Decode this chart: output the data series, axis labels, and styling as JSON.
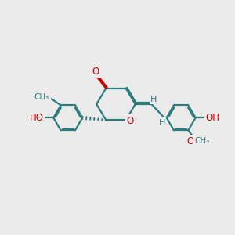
{
  "bg": "#ebebeb",
  "bc": "#2d7d7d",
  "oc": "#cc0000",
  "lw": 1.6,
  "fs": 8.5,
  "fs_small": 7.5,
  "xlim": [
    0,
    10
  ],
  "ylim": [
    0,
    10
  ],
  "figsize": [
    3.0,
    3.0
  ],
  "dpi": 100
}
